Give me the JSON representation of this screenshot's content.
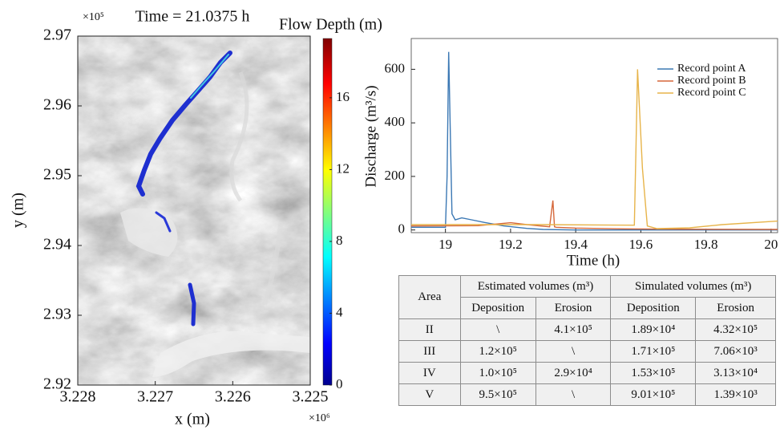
{
  "chart_data": [
    {
      "type": "heatmap",
      "title": "Time = 21.0375 h",
      "xlabel": "x (m)",
      "ylabel": "y (m)",
      "x_multiplier": "×10⁶",
      "y_multiplier": "×10⁵",
      "colorbar_label": "Flow Depth (m)",
      "xlim": [
        3.228,
        3.225
      ],
      "xticks": [
        3.228,
        3.227,
        3.226,
        3.225
      ],
      "ylim": [
        2.92,
        2.97
      ],
      "yticks": [
        2.92,
        2.93,
        2.94,
        2.95,
        2.96,
        2.97
      ],
      "clim": [
        0,
        19.3
      ],
      "cticks": [
        0,
        4,
        8,
        12,
        16
      ]
    },
    {
      "type": "line",
      "xlabel": "Time (h)",
      "ylabel": "Discharge (m³/s)",
      "xlim": [
        18.895,
        20.02
      ],
      "xticks": [
        19,
        19.2,
        19.4,
        19.6,
        19.8,
        20
      ],
      "ylim": [
        -10,
        715
      ],
      "yticks": [
        0,
        200,
        400,
        600
      ],
      "legend": "upper right",
      "series": [
        {
          "name": "Record point A",
          "color": "#3b78b4",
          "x": [
            18.895,
            19.0,
            19.005,
            19.01,
            19.02,
            19.03,
            19.05,
            19.08,
            19.12,
            19.18,
            19.25,
            19.3,
            19.4,
            20.02
          ],
          "values": [
            10,
            10,
            200,
            665,
            60,
            38,
            45,
            38,
            28,
            15,
            6,
            2,
            0,
            0
          ]
        },
        {
          "name": "Record point B",
          "color": "#d5673a",
          "x": [
            18.895,
            19.1,
            19.2,
            19.25,
            19.32,
            19.33,
            19.335,
            19.34,
            19.4,
            19.55,
            19.7,
            20.02
          ],
          "values": [
            15,
            16,
            27,
            20,
            12,
            110,
            12,
            10,
            7,
            4,
            3,
            2
          ]
        },
        {
          "name": "Record point C",
          "color": "#e7b44a",
          "x": [
            18.895,
            19.3,
            19.58,
            19.585,
            19.59,
            19.605,
            19.62,
            19.65,
            19.75,
            19.85,
            20.02
          ],
          "values": [
            20,
            20,
            18,
            300,
            600,
            230,
            15,
            5,
            8,
            20,
            33
          ]
        }
      ]
    }
  ],
  "table": {
    "header": [
      [
        "Area",
        "Estimated volumes (m³)",
        "Simulated volumes (m³)"
      ],
      [
        "Deposition",
        "Erosion",
        "Deposition",
        "Erosion"
      ]
    ],
    "rows": [
      [
        "II",
        "\\",
        "4.1×10⁵",
        "1.89×10⁴",
        "4.32×10⁵"
      ],
      [
        "III",
        "1.2×10⁵",
        "\\",
        "1.71×10⁵",
        "7.06×10³"
      ],
      [
        "IV",
        "1.0×10⁵",
        "2.9×10⁴",
        "1.53×10⁵",
        "3.13×10⁴"
      ],
      [
        "V",
        "9.5×10⁵",
        "\\",
        "9.01×10⁵",
        "1.39×10³"
      ]
    ]
  }
}
